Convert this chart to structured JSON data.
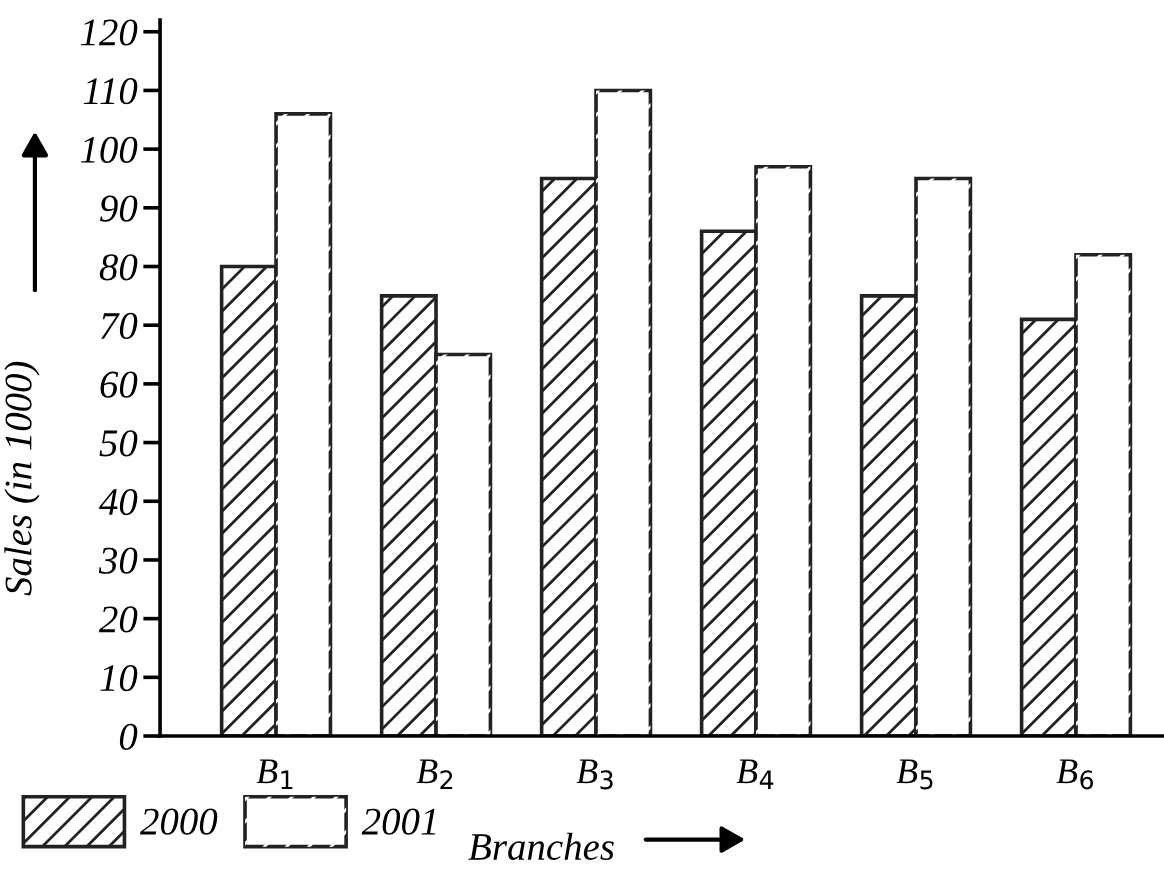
{
  "chart_data": {
    "type": "bar",
    "categories": [
      "B$_{1}$",
      "B$_{2}$",
      "B$_{3}$",
      "B$_{4}$",
      "B$_{5}$",
      "B$_{6}$"
    ],
    "series": [
      {
        "name": "2000",
        "color": "#222222",
        "values": [
          80,
          75,
          95,
          86,
          75,
          71
        ]
      },
      {
        "name": "2001",
        "color": "#ffffff",
        "values": [
          106,
          65,
          110,
          97,
          95,
          82
        ]
      }
    ],
    "xlabel": "Branches",
    "ylabel": "Sales (in 1000)",
    "ylim": [
      0,
      122
    ],
    "yticks": [
      0,
      10,
      20,
      30,
      40,
      50,
      60,
      70,
      80,
      90,
      100,
      110,
      120
    ],
    "grid": false,
    "legend": "bottom left"
  }
}
